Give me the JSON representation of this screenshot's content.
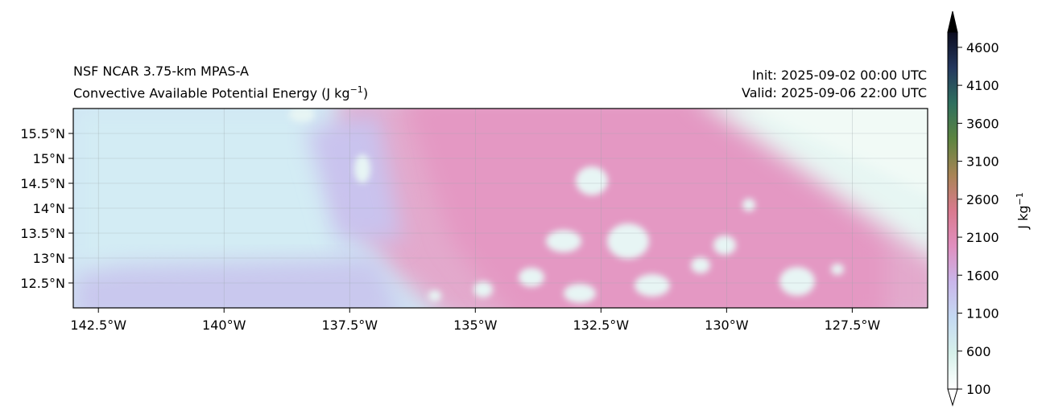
{
  "title": {
    "model": "NSF NCAR 3.75-km MPAS-A",
    "field": "Convective Available Potential Energy (J kg",
    "field_exp": "−1",
    "field_close": ")",
    "init": "Init: 2025-09-02 00:00 UTC",
    "valid": "Valid: 2025-09-06 22:00 UTC"
  },
  "map": {
    "lon_range": [
      -143.0,
      -126.0
    ],
    "lat_range": [
      12.0,
      16.0
    ],
    "lon_ticks": [
      {
        "value": -142.5,
        "label": "142.5°W"
      },
      {
        "value": -140.0,
        "label": "140°W"
      },
      {
        "value": -137.5,
        "label": "137.5°W"
      },
      {
        "value": -135.0,
        "label": "135°W"
      },
      {
        "value": -132.5,
        "label": "132.5°W"
      },
      {
        "value": -130.0,
        "label": "130°W"
      },
      {
        "value": -127.5,
        "label": "127.5°W"
      }
    ],
    "lat_ticks": [
      {
        "value": 15.5,
        "label": "15.5°N"
      },
      {
        "value": 15.0,
        "label": "15°N"
      },
      {
        "value": 14.5,
        "label": "14.5°N"
      },
      {
        "value": 14.0,
        "label": "14°N"
      },
      {
        "value": 13.5,
        "label": "13.5°N"
      },
      {
        "value": 13.0,
        "label": "13°N"
      },
      {
        "value": 12.5,
        "label": "12.5°N"
      }
    ],
    "gridlines": true
  },
  "colorbar": {
    "label": "J kg",
    "label_exp": "−1",
    "min": 100,
    "max": 4800,
    "extend": "both",
    "ticks": [
      {
        "value": 100,
        "label": "100"
      },
      {
        "value": 600,
        "label": "600"
      },
      {
        "value": 1100,
        "label": "1100"
      },
      {
        "value": 1600,
        "label": "1600"
      },
      {
        "value": 2100,
        "label": "2100"
      },
      {
        "value": 2600,
        "label": "2600"
      },
      {
        "value": 3100,
        "label": "3100"
      },
      {
        "value": 3600,
        "label": "3600"
      },
      {
        "value": 4100,
        "label": "4100"
      },
      {
        "value": 4600,
        "label": "4600"
      }
    ],
    "colors": [
      "#ffffff",
      "#d6f0ea",
      "#c4d9f2",
      "#c9b6ea",
      "#e08fbf",
      "#d97a8e",
      "#a88455",
      "#5d8440",
      "#2f6f5e",
      "#24385e",
      "#0b0b1e"
    ]
  }
}
